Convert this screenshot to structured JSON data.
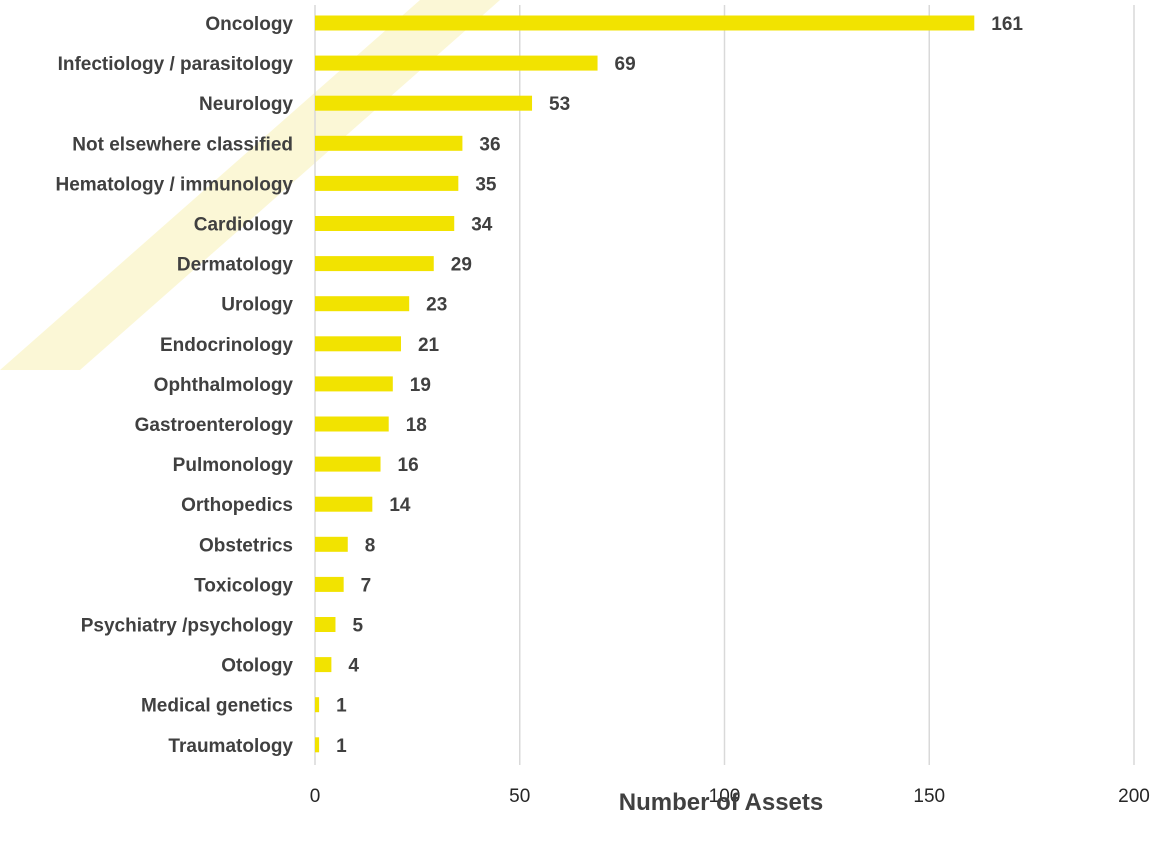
{
  "chart_data": {
    "type": "bar",
    "orientation": "horizontal",
    "categories": [
      "Oncology",
      "Infectiology / parasitology",
      "Neurology",
      "Not elsewhere classified",
      "Hematology / immunology",
      "Cardiology",
      "Dermatology",
      "Urology",
      "Endocrinology",
      "Ophthalmology",
      "Gastroenterology",
      "Pulmonology",
      "Orthopedics",
      "Obstetrics",
      "Toxicology",
      "Psychiatry /psychology",
      "Otology",
      "Medical genetics",
      "Traumatology"
    ],
    "values": [
      161,
      69,
      53,
      36,
      35,
      34,
      29,
      23,
      21,
      19,
      18,
      16,
      14,
      8,
      7,
      5,
      4,
      1,
      1
    ],
    "xlabel": "Number of Assets",
    "ylabel": "",
    "xlim": [
      0,
      200
    ],
    "xticks": [
      "0",
      "50",
      "100",
      "150",
      "200"
    ],
    "grid": "vertical",
    "legend": "none",
    "data_labels": true
  },
  "colors": {
    "bar": "#f2e300",
    "grid": "#d9d9d9",
    "watermark": "#fbf7d6"
  }
}
